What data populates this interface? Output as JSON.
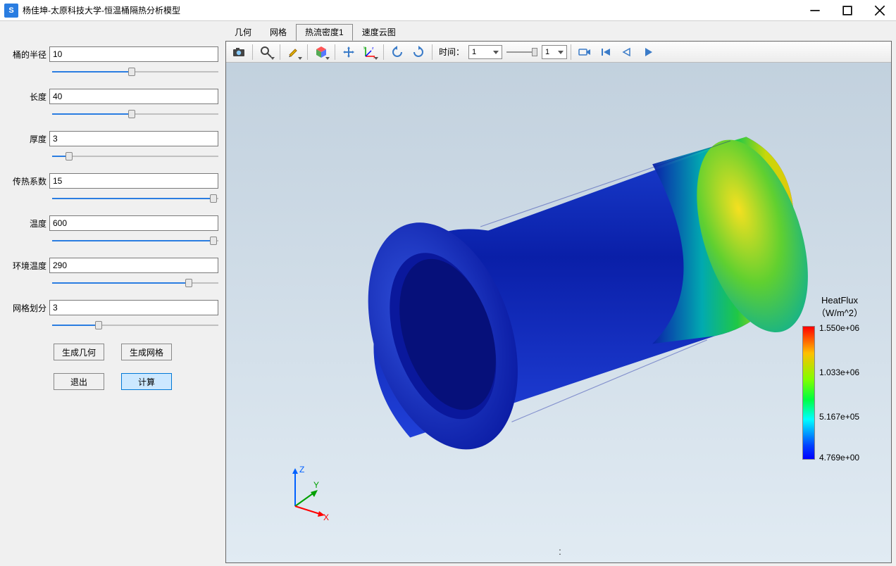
{
  "window": {
    "title": "杨佳坤-太原科技大学-恒温桶隔热分析模型",
    "icon_letter": "S"
  },
  "params": [
    {
      "label": "桶的半径",
      "value": "10",
      "slider_pct": 48
    },
    {
      "label": "长度",
      "value": "40",
      "slider_pct": 48
    },
    {
      "label": "厚度",
      "value": "3",
      "slider_pct": 10
    },
    {
      "label": "传热系数",
      "value": "15",
      "slider_pct": 97
    },
    {
      "label": "温度",
      "value": "600",
      "slider_pct": 97
    },
    {
      "label": "环境温度",
      "value": "290",
      "slider_pct": 82
    },
    {
      "label": "网格划分",
      "value": "3",
      "slider_pct": 28
    }
  ],
  "buttons": {
    "gen_geom": "生成几何",
    "gen_mesh": "生成网格",
    "exit": "退出",
    "compute": "计算"
  },
  "tabs": {
    "items": [
      "几何",
      "网格",
      "热流密度1",
      "速度云图"
    ],
    "active_index": 2
  },
  "toolbar": {
    "time_label": "时间：",
    "time_value": "1",
    "frame_value": "1"
  },
  "legend": {
    "title_line1": "HeatFlux",
    "title_line2": "（W/m^2）",
    "ticks": [
      {
        "value": "1.550e+06",
        "pos": 0
      },
      {
        "value": "1.033e+06",
        "pos": 63
      },
      {
        "value": "5.167e+05",
        "pos": 126
      },
      {
        "value": "4.769e+00",
        "pos": 184
      }
    ]
  },
  "triad": {
    "x": "X",
    "y": "Y",
    "z": "Z"
  },
  "viewport_dots": ":",
  "colors": {
    "viewport_top": "#c2d1de",
    "viewport_bottom": "#e1ebf3",
    "accent": "#2a7de1"
  }
}
